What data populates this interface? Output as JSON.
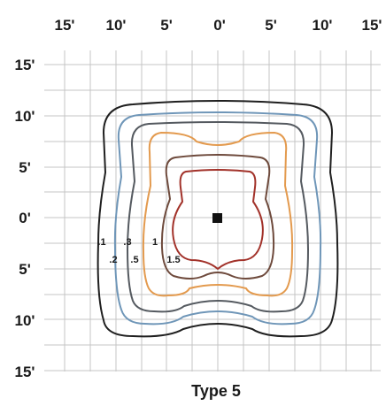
{
  "diagram": {
    "caption": "Type 5",
    "x_ticks": [
      "15'",
      "10'",
      "5'",
      "0'",
      "5'",
      "10'",
      "15'"
    ],
    "y_ticks": [
      "15'",
      "10'",
      "5'",
      "0'",
      "5'",
      "10'",
      "15'"
    ],
    "isolines": [
      {
        "label": ".1",
        "color": "#1f1f1f"
      },
      {
        "label": ".2",
        "color": "#6f96b8"
      },
      {
        "label": ".3",
        "color": "#555a60"
      },
      {
        "label": ".5",
        "color": "#e39a4e"
      },
      {
        "label": "1",
        "color": "#6e4a3c"
      },
      {
        "label": "1.5",
        "color": "#a2322a"
      }
    ],
    "center_marker": "luminaire"
  }
}
